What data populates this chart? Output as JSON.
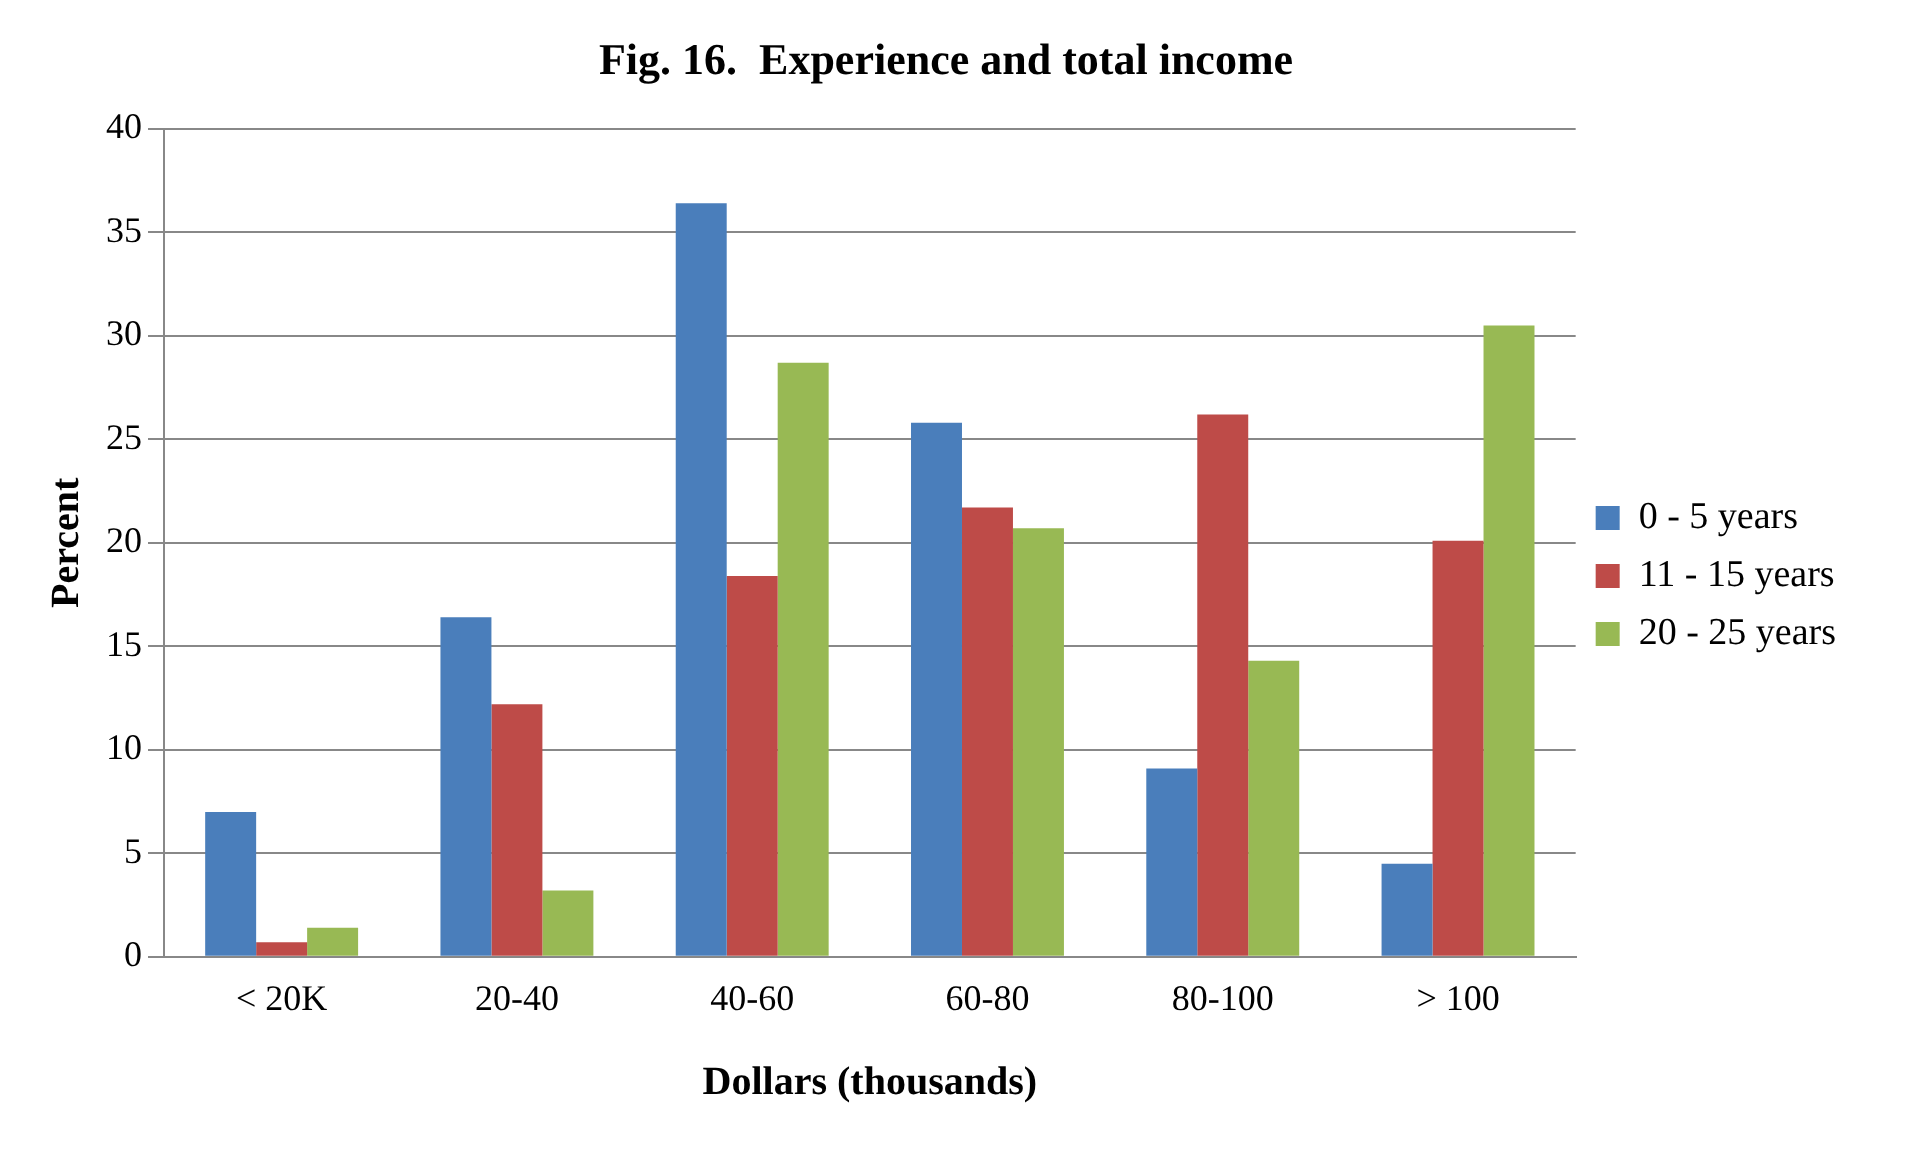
{
  "chart_data": {
    "type": "bar",
    "title": "Fig. 16.  Experience and total income",
    "xlabel": "Dollars (thousands)",
    "ylabel": "Percent",
    "categories": [
      "< 20K",
      "20-40",
      "40-60",
      "60-80",
      "80-100",
      "> 100"
    ],
    "series": [
      {
        "name": "0 - 5 years",
        "color": "#4a7ebb",
        "values": [
          7.0,
          16.4,
          36.4,
          25.8,
          9.1,
          4.5
        ]
      },
      {
        "name": "11 - 15 years",
        "color": "#be4b48",
        "values": [
          0.7,
          12.2,
          18.4,
          21.7,
          26.2,
          20.1
        ]
      },
      {
        "name": "20 - 25 years",
        "color": "#98b954",
        "values": [
          1.4,
          3.2,
          28.7,
          20.7,
          14.3,
          30.5
        ]
      }
    ],
    "ylim": [
      0,
      40
    ],
    "yticks": [
      0,
      5,
      10,
      15,
      20,
      25,
      30,
      35,
      40
    ],
    "grid": "y",
    "legend": "right"
  }
}
